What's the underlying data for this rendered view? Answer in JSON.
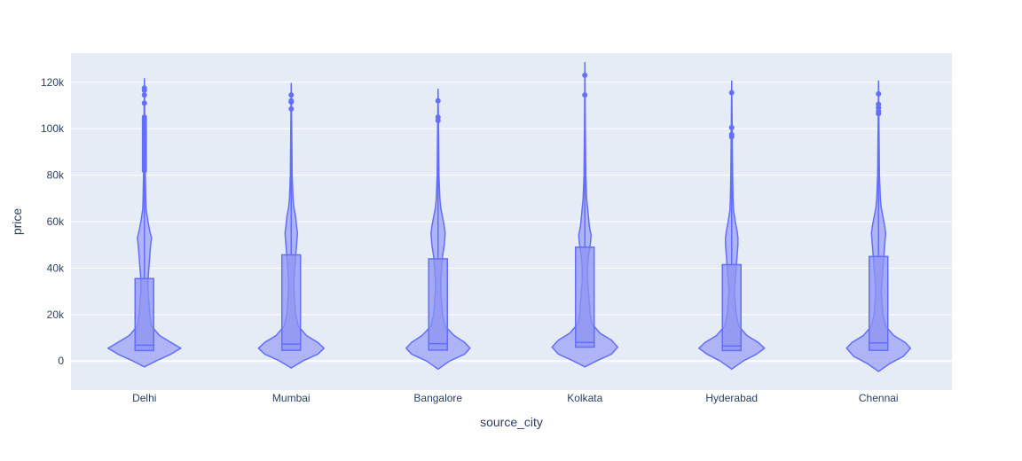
{
  "chart_data": {
    "type": "violin",
    "xlabel": "source_city",
    "ylabel": "price",
    "ylim": [
      -12500,
      132500
    ],
    "yticks": [
      {
        "value": 0,
        "label": "0"
      },
      {
        "value": 20000,
        "label": "20k"
      },
      {
        "value": 40000,
        "label": "40k"
      },
      {
        "value": 60000,
        "label": "60k"
      },
      {
        "value": 80000,
        "label": "80k"
      },
      {
        "value": 100000,
        "label": "100k"
      },
      {
        "value": 120000,
        "label": "120k"
      }
    ],
    "grid": true,
    "colors": {
      "plot_bg": "#e5ecf6",
      "grid": "#ffffff",
      "trace": "#636efa",
      "violin_fill": "#a5aaf5",
      "box_fill": "#8c93f2"
    },
    "categories": [
      "Delhi",
      "Mumbai",
      "Bangalore",
      "Kolkata",
      "Hyderabad",
      "Chennai"
    ],
    "series": [
      {
        "category": "Delhi",
        "box": {
          "q1": 4500,
          "median": 6800,
          "q3": 35500
        },
        "whisker_top": 121500,
        "violin_range": [
          -2500,
          121500
        ],
        "density": [
          [
            -2500,
            0
          ],
          [
            0,
            13
          ],
          [
            3000,
            30
          ],
          [
            5500,
            41
          ],
          [
            8000,
            30
          ],
          [
            11000,
            17
          ],
          [
            15000,
            8
          ],
          [
            20000,
            6
          ],
          [
            25000,
            5
          ],
          [
            30000,
            4
          ],
          [
            35000,
            4
          ],
          [
            40000,
            5
          ],
          [
            45000,
            6
          ],
          [
            50000,
            7
          ],
          [
            53000,
            8
          ],
          [
            56000,
            6
          ],
          [
            60000,
            4
          ],
          [
            65000,
            2
          ],
          [
            70000,
            1.5
          ],
          [
            80000,
            1
          ],
          [
            100000,
            0.5
          ],
          [
            121500,
            0
          ]
        ],
        "outliers": [
          82000,
          83000,
          84000,
          85000,
          86000,
          87000,
          88000,
          89000,
          90000,
          91000,
          92000,
          93000,
          94000,
          95000,
          96000,
          97000,
          98000,
          99000,
          100000,
          101000,
          102000,
          103000,
          104000,
          105000,
          111000,
          114500,
          116500,
          117500
        ]
      },
      {
        "category": "Mumbai",
        "box": {
          "q1": 4600,
          "median": 7300,
          "q3": 45700
        },
        "whisker_top": 119500,
        "violin_range": [
          -3000,
          119500
        ],
        "density": [
          [
            -3000,
            0
          ],
          [
            0,
            13
          ],
          [
            3000,
            30
          ],
          [
            5500,
            37
          ],
          [
            8000,
            30
          ],
          [
            11000,
            17
          ],
          [
            15000,
            8
          ],
          [
            20000,
            5
          ],
          [
            25000,
            4
          ],
          [
            30000,
            3
          ],
          [
            35000,
            3
          ],
          [
            40000,
            4
          ],
          [
            45000,
            5
          ],
          [
            50000,
            6
          ],
          [
            55000,
            7
          ],
          [
            58000,
            6
          ],
          [
            62000,
            5
          ],
          [
            66000,
            3
          ],
          [
            70000,
            2
          ],
          [
            80000,
            1
          ],
          [
            100000,
            0.5
          ],
          [
            119500,
            0
          ]
        ],
        "outliers": [
          108500,
          111500,
          112000,
          114500
        ]
      },
      {
        "category": "Bangalore",
        "box": {
          "q1": 4700,
          "median": 7500,
          "q3": 44000
        },
        "whisker_top": 117000,
        "violin_range": [
          -3500,
          117000
        ],
        "density": [
          [
            -3500,
            0
          ],
          [
            0,
            13
          ],
          [
            3000,
            30
          ],
          [
            5500,
            36
          ],
          [
            8000,
            30
          ],
          [
            11000,
            18
          ],
          [
            15000,
            8
          ],
          [
            20000,
            5
          ],
          [
            25000,
            4
          ],
          [
            30000,
            3
          ],
          [
            35000,
            3
          ],
          [
            40000,
            4
          ],
          [
            45000,
            5
          ],
          [
            50000,
            7
          ],
          [
            55000,
            8
          ],
          [
            58000,
            7
          ],
          [
            62000,
            5
          ],
          [
            66000,
            3
          ],
          [
            70000,
            2
          ],
          [
            80000,
            1
          ],
          [
            100000,
            0.5
          ],
          [
            117000,
            0
          ]
        ],
        "outliers": [
          103500,
          105000,
          112000
        ]
      },
      {
        "category": "Kolkata",
        "box": {
          "q1": 6000,
          "median": 8000,
          "q3": 49000
        },
        "whisker_top": 128500,
        "violin_range": [
          -2500,
          128500
        ],
        "density": [
          [
            -2500,
            0
          ],
          [
            0,
            13
          ],
          [
            3000,
            30
          ],
          [
            6000,
            37
          ],
          [
            9000,
            30
          ],
          [
            12000,
            17
          ],
          [
            16000,
            8
          ],
          [
            20000,
            6
          ],
          [
            25000,
            5
          ],
          [
            30000,
            4
          ],
          [
            35000,
            3
          ],
          [
            40000,
            3
          ],
          [
            45000,
            4
          ],
          [
            50000,
            6
          ],
          [
            54000,
            7
          ],
          [
            58000,
            5
          ],
          [
            62000,
            4
          ],
          [
            66000,
            3
          ],
          [
            70000,
            2
          ],
          [
            80000,
            1
          ],
          [
            100000,
            0.5
          ],
          [
            128500,
            0
          ]
        ],
        "outliers": [
          114500,
          123000
        ]
      },
      {
        "category": "Hyderabad",
        "box": {
          "q1": 4500,
          "median": 6500,
          "q3": 41500
        },
        "whisker_top": 120500,
        "violin_range": [
          -3500,
          120500
        ],
        "density": [
          [
            -3500,
            0
          ],
          [
            0,
            13
          ],
          [
            3000,
            28
          ],
          [
            5500,
            37
          ],
          [
            8000,
            30
          ],
          [
            11000,
            17
          ],
          [
            15000,
            8
          ],
          [
            20000,
            5
          ],
          [
            25000,
            4
          ],
          [
            30000,
            3
          ],
          [
            35000,
            4
          ],
          [
            40000,
            5
          ],
          [
            45000,
            6
          ],
          [
            50000,
            7
          ],
          [
            53000,
            7
          ],
          [
            56000,
            6
          ],
          [
            60000,
            4
          ],
          [
            65000,
            2
          ],
          [
            70000,
            1.5
          ],
          [
            80000,
            1
          ],
          [
            100000,
            0.5
          ],
          [
            120500,
            0
          ]
        ],
        "outliers": [
          96500,
          97500,
          100500,
          115500
        ]
      },
      {
        "category": "Chennai",
        "box": {
          "q1": 4600,
          "median": 7800,
          "q3": 45000
        },
        "whisker_top": 120500,
        "violin_range": [
          -4500,
          120500
        ],
        "density": [
          [
            -4500,
            0
          ],
          [
            -1000,
            13
          ],
          [
            2000,
            28
          ],
          [
            5500,
            36
          ],
          [
            8000,
            30
          ],
          [
            11000,
            17
          ],
          [
            15000,
            8
          ],
          [
            20000,
            5
          ],
          [
            25000,
            4
          ],
          [
            30000,
            3
          ],
          [
            35000,
            4
          ],
          [
            40000,
            5
          ],
          [
            45000,
            6
          ],
          [
            50000,
            7
          ],
          [
            55000,
            8
          ],
          [
            58000,
            7
          ],
          [
            62000,
            5
          ],
          [
            66000,
            3
          ],
          [
            70000,
            2
          ],
          [
            80000,
            1
          ],
          [
            100000,
            0.5
          ],
          [
            120500,
            0
          ]
        ],
        "outliers": [
          106500,
          107500,
          109000,
          110500,
          115000
        ]
      }
    ]
  }
}
